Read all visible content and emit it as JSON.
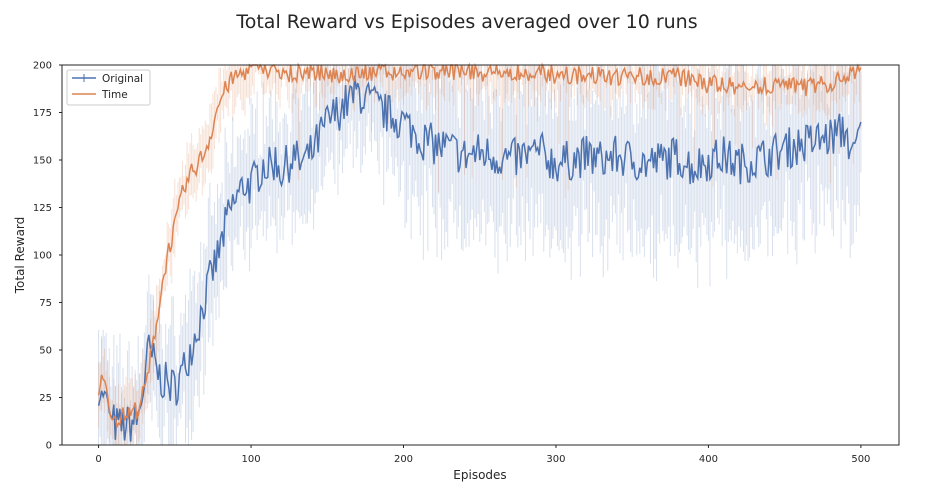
{
  "chart_data": {
    "type": "line",
    "title": "Total Reward vs Episodes averaged over 10 runs",
    "xlabel": "Episodes",
    "ylabel": "Total Reward",
    "xlim": [
      -24,
      525
    ],
    "ylim": [
      0,
      200
    ],
    "xticks": [
      0,
      100,
      200,
      300,
      400,
      500
    ],
    "yticks": [
      0,
      25,
      50,
      75,
      100,
      125,
      150,
      175,
      200
    ],
    "grid": false,
    "legend": "upper-left",
    "error_bars": "vertical bars per episode",
    "series": [
      {
        "name": "Original",
        "color": "#4c72b0",
        "keypoints": [
          [
            0,
            24
          ],
          [
            2,
            27
          ],
          [
            5,
            26
          ],
          [
            8,
            14
          ],
          [
            12,
            10
          ],
          [
            18,
            10
          ],
          [
            22,
            12
          ],
          [
            26,
            14
          ],
          [
            29,
            28
          ],
          [
            31,
            40
          ],
          [
            33,
            50
          ],
          [
            36,
            44
          ],
          [
            40,
            36
          ],
          [
            45,
            32
          ],
          [
            50,
            30
          ],
          [
            55,
            38
          ],
          [
            60,
            50
          ],
          [
            65,
            62
          ],
          [
            70,
            78
          ],
          [
            75,
            92
          ],
          [
            80,
            104
          ],
          [
            84,
            118
          ],
          [
            88,
            126
          ],
          [
            92,
            132
          ],
          [
            96,
            138
          ],
          [
            100,
            136
          ],
          [
            104,
            142
          ],
          [
            108,
            148
          ],
          [
            112,
            146
          ],
          [
            116,
            150
          ],
          [
            120,
            144
          ],
          [
            124,
            148
          ],
          [
            128,
            152
          ],
          [
            132,
            148
          ],
          [
            136,
            150
          ],
          [
            140,
            154
          ],
          [
            145,
            162
          ],
          [
            150,
            170
          ],
          [
            155,
            174
          ],
          [
            160,
            178
          ],
          [
            165,
            182
          ],
          [
            170,
            186
          ],
          [
            175,
            182
          ],
          [
            180,
            180
          ],
          [
            185,
            176
          ],
          [
            190,
            174
          ],
          [
            195,
            172
          ],
          [
            200,
            170
          ],
          [
            210,
            162
          ],
          [
            220,
            158
          ],
          [
            230,
            156
          ],
          [
            240,
            152
          ],
          [
            250,
            154
          ],
          [
            260,
            152
          ],
          [
            270,
            150
          ],
          [
            280,
            152
          ],
          [
            290,
            154
          ],
          [
            300,
            148
          ],
          [
            310,
            150
          ],
          [
            320,
            152
          ],
          [
            330,
            150
          ],
          [
            340,
            152
          ],
          [
            350,
            150
          ],
          [
            360,
            148
          ],
          [
            370,
            150
          ],
          [
            380,
            152
          ],
          [
            390,
            146
          ],
          [
            400,
            150
          ],
          [
            410,
            152
          ],
          [
            420,
            148
          ],
          [
            430,
            150
          ],
          [
            440,
            152
          ],
          [
            450,
            156
          ],
          [
            460,
            158
          ],
          [
            470,
            160
          ],
          [
            480,
            162
          ],
          [
            490,
            166
          ],
          [
            495,
            150
          ],
          [
            500,
            168
          ]
        ],
        "noise": 11,
        "err_base": 28
      },
      {
        "name": "Time",
        "color": "#dd8452",
        "keypoints": [
          [
            0,
            25
          ],
          [
            2,
            38
          ],
          [
            5,
            30
          ],
          [
            8,
            15
          ],
          [
            12,
            14
          ],
          [
            18,
            16
          ],
          [
            22,
            17
          ],
          [
            26,
            20
          ],
          [
            30,
            28
          ],
          [
            33,
            40
          ],
          [
            36,
            55
          ],
          [
            40,
            75
          ],
          [
            45,
            100
          ],
          [
            50,
            115
          ],
          [
            55,
            132
          ],
          [
            60,
            142
          ],
          [
            65,
            148
          ],
          [
            70,
            155
          ],
          [
            73,
            162
          ],
          [
            76,
            172
          ],
          [
            80,
            182
          ],
          [
            85,
            190
          ],
          [
            90,
            194
          ],
          [
            95,
            196
          ],
          [
            100,
            198
          ],
          [
            120,
            196
          ],
          [
            140,
            196
          ],
          [
            160,
            195
          ],
          [
            180,
            196
          ],
          [
            200,
            196
          ],
          [
            230,
            197
          ],
          [
            260,
            196
          ],
          [
            300,
            195
          ],
          [
            340,
            194
          ],
          [
            380,
            194
          ],
          [
            400,
            190
          ],
          [
            420,
            188
          ],
          [
            440,
            190
          ],
          [
            460,
            188
          ],
          [
            480,
            190
          ],
          [
            500,
            196
          ]
        ],
        "noise": 5,
        "err_base": 14
      }
    ]
  }
}
